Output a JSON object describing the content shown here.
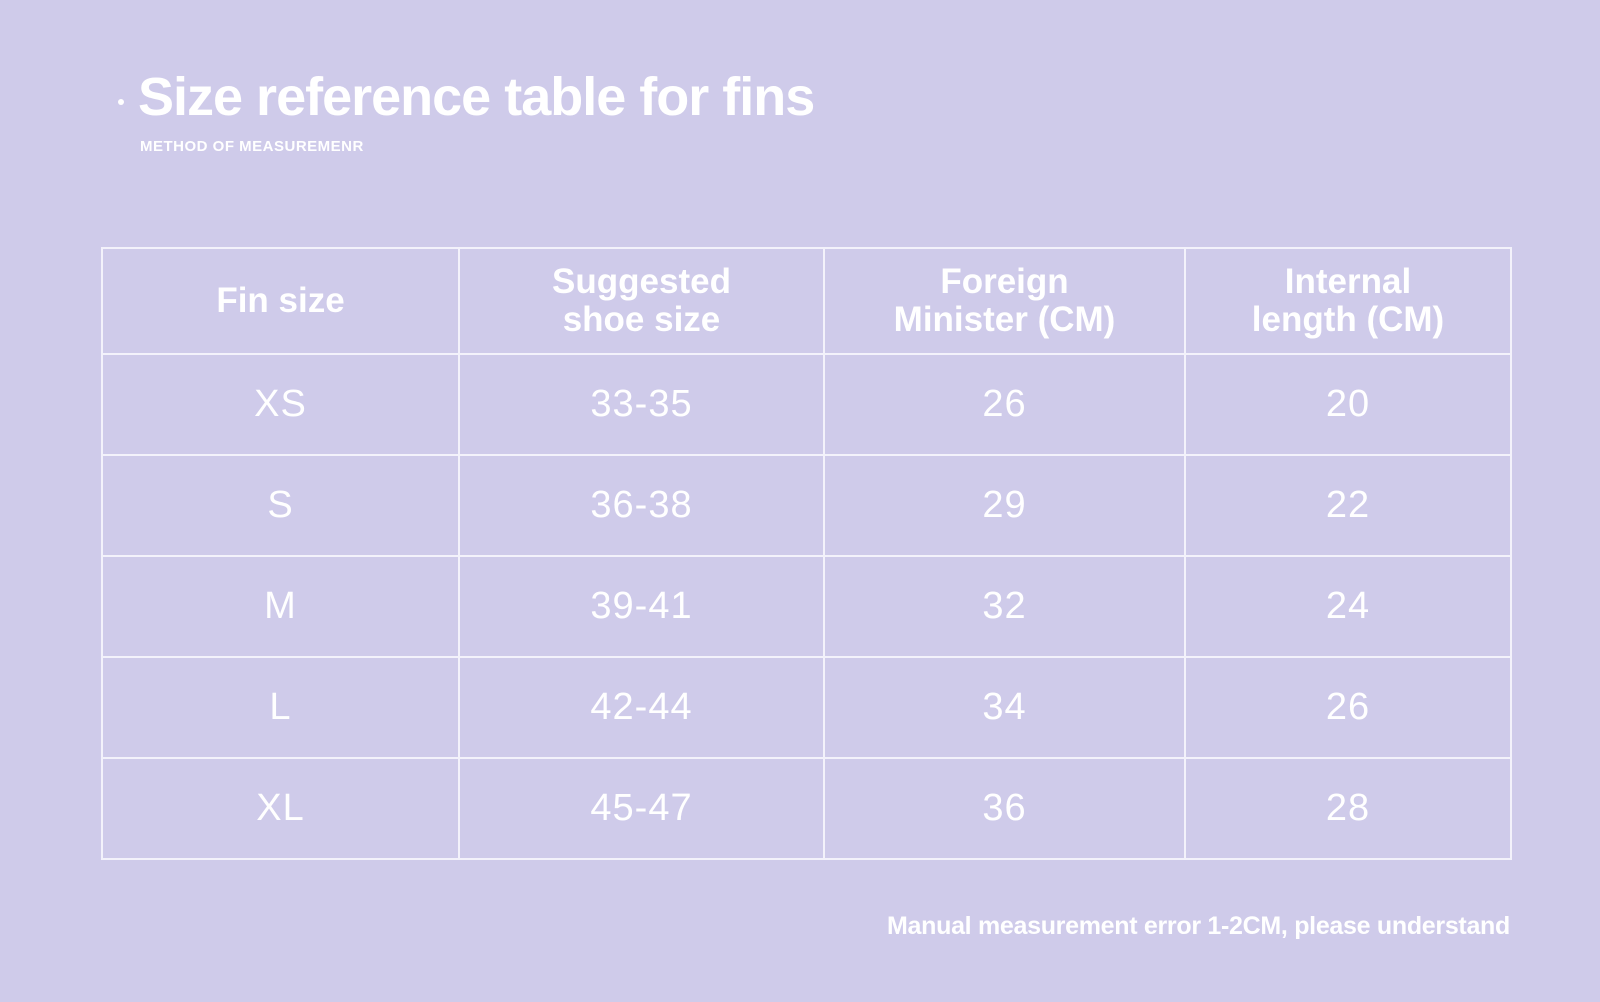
{
  "header": {
    "title": "Size reference table for fins",
    "subtitle": "METHOD OF MEASUREMENR"
  },
  "table": {
    "columns": [
      "Fin size",
      "Suggested shoe size",
      "Foreign Minister (CM)",
      "Internal length (CM)"
    ],
    "header_lines": [
      [
        "Fin size"
      ],
      [
        "Suggested",
        "shoe size"
      ],
      [
        "Foreign",
        "Minister (CM)"
      ],
      [
        "Internal",
        "length (CM)"
      ]
    ],
    "rows": [
      [
        "XS",
        "33-35",
        "26",
        "20"
      ],
      [
        "S",
        "36-38",
        "29",
        "22"
      ],
      [
        "M",
        "39-41",
        "32",
        "24"
      ],
      [
        "L",
        "42-44",
        "34",
        "26"
      ],
      [
        "XL",
        "45-47",
        "36",
        "28"
      ]
    ]
  },
  "footer": {
    "note": "Manual measurement error 1-2CM, please understand"
  },
  "colors": {
    "background": "#cfcbea",
    "text": "#ffffff",
    "grid": "#f3f2fb"
  }
}
